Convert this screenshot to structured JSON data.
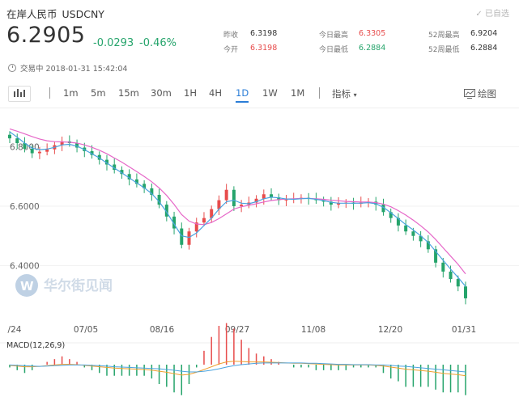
{
  "header": {
    "name": "在岸人民币",
    "code": "USDCNY",
    "watch_label": "已自选",
    "price": "6.2905",
    "change": "-0.0293",
    "change_pct": "-0.46%",
    "timestamp": "交易中 2018-01-31 15:42:04"
  },
  "stats": [
    {
      "label": "昨收",
      "value": "6.3198",
      "color": "#333333"
    },
    {
      "label": "今开",
      "value": "6.3198",
      "color": "#e74c4c"
    },
    {
      "label": "今日最高",
      "value": "6.3305",
      "color": "#e74c4c"
    },
    {
      "label": "今日最低",
      "value": "6.2884",
      "color": "#25a46b"
    },
    {
      "label": "52周最高",
      "value": "6.9204",
      "color": "#333333"
    },
    {
      "label": "52周最低",
      "value": "6.2884",
      "color": "#333333"
    }
  ],
  "toolbar": {
    "timeframes": [
      "1m",
      "5m",
      "15m",
      "30m",
      "1H",
      "4H",
      "1D",
      "1W",
      "1M"
    ],
    "active": "1D",
    "indicators_label": "指标",
    "draw_label": "绘图"
  },
  "watermark": "华尔街见闻",
  "colors": {
    "up": "#e74c4c",
    "down": "#25a46b",
    "accent": "#2a7dd7",
    "ma_short": "#4aa3df",
    "ma_long": "#e667c8"
  },
  "chart_data": {
    "type": "candlestick",
    "y_ticks": [
      "6.8000",
      "6.6000",
      "6.4000"
    ],
    "x_ticks": [
      "/24",
      "07/05",
      "08/16",
      "09/27",
      "11/08",
      "12/20",
      "01/31"
    ],
    "ylim": [
      6.26,
      6.88
    ],
    "series": [
      {
        "name": "close",
        "values": [
          6.828,
          6.812,
          6.793,
          6.778,
          6.783,
          6.791,
          6.805,
          6.818,
          6.812,
          6.797,
          6.785,
          6.772,
          6.756,
          6.74,
          6.722,
          6.708,
          6.69,
          6.675,
          6.66,
          6.638,
          6.605,
          6.565,
          6.525,
          6.47,
          6.515,
          6.545,
          6.56,
          6.59,
          6.62,
          6.655,
          6.6,
          6.605,
          6.612,
          6.625,
          6.64,
          6.63,
          6.62,
          6.622,
          6.625,
          6.628,
          6.625,
          6.62,
          6.615,
          6.605,
          6.61,
          6.612,
          6.608,
          6.612,
          6.615,
          6.605,
          6.58,
          6.56,
          6.535,
          6.515,
          6.5,
          6.482,
          6.455,
          6.41,
          6.38,
          6.355,
          6.33,
          6.29
        ]
      },
      {
        "name": "open",
        "values": [
          6.84,
          6.828,
          6.812,
          6.793,
          6.778,
          6.783,
          6.791,
          6.805,
          6.818,
          6.812,
          6.797,
          6.785,
          6.772,
          6.756,
          6.74,
          6.722,
          6.708,
          6.69,
          6.675,
          6.66,
          6.638,
          6.605,
          6.565,
          6.525,
          6.47,
          6.515,
          6.545,
          6.56,
          6.59,
          6.62,
          6.655,
          6.6,
          6.605,
          6.612,
          6.625,
          6.64,
          6.63,
          6.62,
          6.622,
          6.625,
          6.628,
          6.625,
          6.62,
          6.615,
          6.605,
          6.61,
          6.612,
          6.608,
          6.612,
          6.615,
          6.605,
          6.58,
          6.56,
          6.535,
          6.515,
          6.5,
          6.482,
          6.455,
          6.41,
          6.38,
          6.355,
          6.33
        ]
      },
      {
        "name": "ma_short",
        "values": [
          6.85,
          6.832,
          6.812,
          6.795,
          6.79,
          6.792,
          6.798,
          6.806,
          6.808,
          6.802,
          6.79,
          6.776,
          6.762,
          6.745,
          6.728,
          6.712,
          6.695,
          6.678,
          6.662,
          6.642,
          6.615,
          6.58,
          6.54,
          6.5,
          6.495,
          6.51,
          6.535,
          6.56,
          6.59,
          6.615,
          6.62,
          6.61,
          6.608,
          6.615,
          6.625,
          6.63,
          6.628,
          6.624,
          6.623,
          6.625,
          6.626,
          6.623,
          6.619,
          6.613,
          6.61,
          6.61,
          6.61,
          6.61,
          6.612,
          6.608,
          6.596,
          6.578,
          6.558,
          6.538,
          6.52,
          6.5,
          6.478,
          6.448,
          6.418,
          6.388,
          6.36,
          6.33
        ]
      },
      {
        "name": "ma_long",
        "values": [
          6.86,
          6.852,
          6.843,
          6.834,
          6.826,
          6.82,
          6.817,
          6.816,
          6.815,
          6.812,
          6.806,
          6.798,
          6.788,
          6.776,
          6.762,
          6.748,
          6.732,
          6.716,
          6.7,
          6.682,
          6.661,
          6.636,
          6.606,
          6.572,
          6.55,
          6.54,
          6.538,
          6.545,
          6.558,
          6.574,
          6.59,
          6.598,
          6.603,
          6.608,
          6.614,
          6.619,
          6.622,
          6.624,
          6.625,
          6.626,
          6.626,
          6.625,
          6.623,
          6.62,
          6.618,
          6.616,
          6.615,
          6.614,
          6.614,
          6.612,
          6.607,
          6.598,
          6.585,
          6.57,
          6.553,
          6.534,
          6.513,
          6.488,
          6.46,
          6.432,
          6.404,
          6.372
        ]
      }
    ],
    "macd_label": "MACD(12,26,9)",
    "macd_dif": [
      -0.002,
      -0.004,
      -0.006,
      -0.006,
      -0.005,
      -0.003,
      -0.001,
      0.001,
      0.001,
      0.0,
      -0.002,
      -0.004,
      -0.006,
      -0.008,
      -0.01,
      -0.011,
      -0.012,
      -0.013,
      -0.014,
      -0.016,
      -0.019,
      -0.022,
      -0.026,
      -0.03,
      -0.028,
      -0.022,
      -0.014,
      -0.006,
      0.002,
      0.008,
      0.01,
      0.009,
      0.008,
      0.008,
      0.008,
      0.007,
      0.006,
      0.005,
      0.004,
      0.004,
      0.003,
      0.002,
      0.001,
      0.0,
      -0.001,
      -0.001,
      -0.001,
      -0.001,
      -0.001,
      -0.002,
      -0.004,
      -0.007,
      -0.01,
      -0.013,
      -0.015,
      -0.017,
      -0.019,
      -0.022,
      -0.025,
      -0.027,
      -0.029,
      -0.032
    ],
    "macd_dea": [
      -0.001,
      -0.002,
      -0.003,
      -0.004,
      -0.005,
      -0.004,
      -0.003,
      -0.002,
      -0.001,
      -0.001,
      -0.001,
      -0.002,
      -0.003,
      -0.004,
      -0.006,
      -0.007,
      -0.008,
      -0.009,
      -0.01,
      -0.011,
      -0.012,
      -0.014,
      -0.016,
      -0.019,
      -0.021,
      -0.021,
      -0.019,
      -0.016,
      -0.012,
      -0.007,
      -0.003,
      0.0,
      0.002,
      0.004,
      0.005,
      0.005,
      0.005,
      0.005,
      0.005,
      0.005,
      0.004,
      0.004,
      0.003,
      0.002,
      0.001,
      0.001,
      0.0,
      0.0,
      0.0,
      -0.001,
      -0.001,
      -0.002,
      -0.004,
      -0.005,
      -0.007,
      -0.009,
      -0.011,
      -0.013,
      -0.015,
      -0.017,
      -0.019,
      -0.021
    ]
  }
}
